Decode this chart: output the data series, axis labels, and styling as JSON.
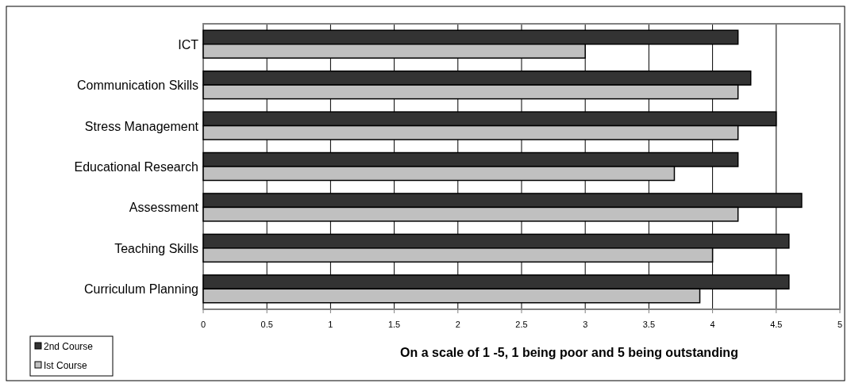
{
  "chart_data": {
    "type": "bar",
    "orientation": "horizontal",
    "xlabel": "On a scale of 1 -5, 1 being poor and 5 being outstanding",
    "categories": [
      "ICT",
      "Communication Skills",
      "Stress Management",
      "Educational Research",
      "Assessment",
      "Teaching Skills",
      "Curriculum Planning"
    ],
    "series": [
      {
        "name": "2nd Course",
        "color": "#333333",
        "values": [
          4.2,
          4.3,
          4.5,
          4.2,
          4.7,
          4.6,
          4.6
        ]
      },
      {
        "name": "Ist Course",
        "color": "#c0c0c0",
        "values": [
          3.0,
          4.2,
          4.2,
          3.7,
          4.2,
          4.0,
          3.9
        ]
      }
    ],
    "xlim": [
      0,
      5
    ],
    "xticks": [
      0,
      0.5,
      1,
      1.5,
      2,
      2.5,
      3,
      3.5,
      4,
      4.5,
      5
    ],
    "grid": "x",
    "legend": "bottom left"
  }
}
